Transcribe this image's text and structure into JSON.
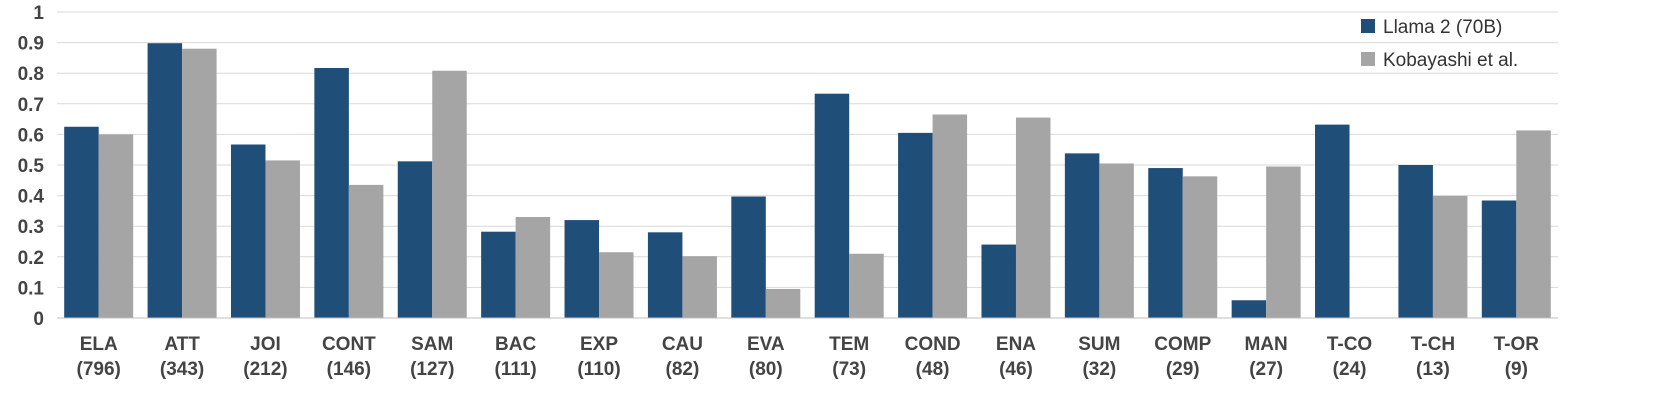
{
  "chart_data": {
    "type": "bar",
    "categories": [
      "ELA",
      "ATT",
      "JOI",
      "CONT",
      "SAM",
      "BAC",
      "EXP",
      "CAU",
      "EVA",
      "TEM",
      "COND",
      "ENA",
      "SUM",
      "COMP",
      "MAN",
      "T-CO",
      "T-CH",
      "T-OR"
    ],
    "counts": [
      "(796)",
      "(343)",
      "(212)",
      "(146)",
      "(127)",
      "(111)",
      "(110)",
      "(82)",
      "(80)",
      "(73)",
      "(48)",
      "(46)",
      "(32)",
      "(29)",
      "(27)",
      "(24)",
      "(13)",
      "(9)"
    ],
    "series": [
      {
        "name": "Llama 2 (70B)",
        "color": "#1f4e79",
        "values": [
          0.625,
          0.898,
          0.567,
          0.817,
          0.512,
          0.282,
          0.32,
          0.28,
          0.397,
          0.733,
          0.605,
          0.24,
          0.538,
          0.49,
          0.058,
          0.632,
          0.5,
          0.384
        ]
      },
      {
        "name": "Kobayashi et al.",
        "color": "#a5a5a5",
        "values": [
          0.6,
          0.88,
          0.515,
          0.435,
          0.808,
          0.33,
          0.215,
          0.202,
          0.095,
          0.21,
          0.665,
          0.655,
          0.505,
          0.463,
          0.495,
          0,
          0.399,
          0.613
        ]
      }
    ],
    "ylim": [
      0,
      1
    ],
    "yticks": [
      "0",
      "0.1",
      "0.2",
      "0.3",
      "0.4",
      "0.5",
      "0.6",
      "0.7",
      "0.8",
      "0.9",
      "1"
    ],
    "legend_position": "top-right",
    "grid": true,
    "title": "",
    "xlabel": "",
    "ylabel": ""
  }
}
